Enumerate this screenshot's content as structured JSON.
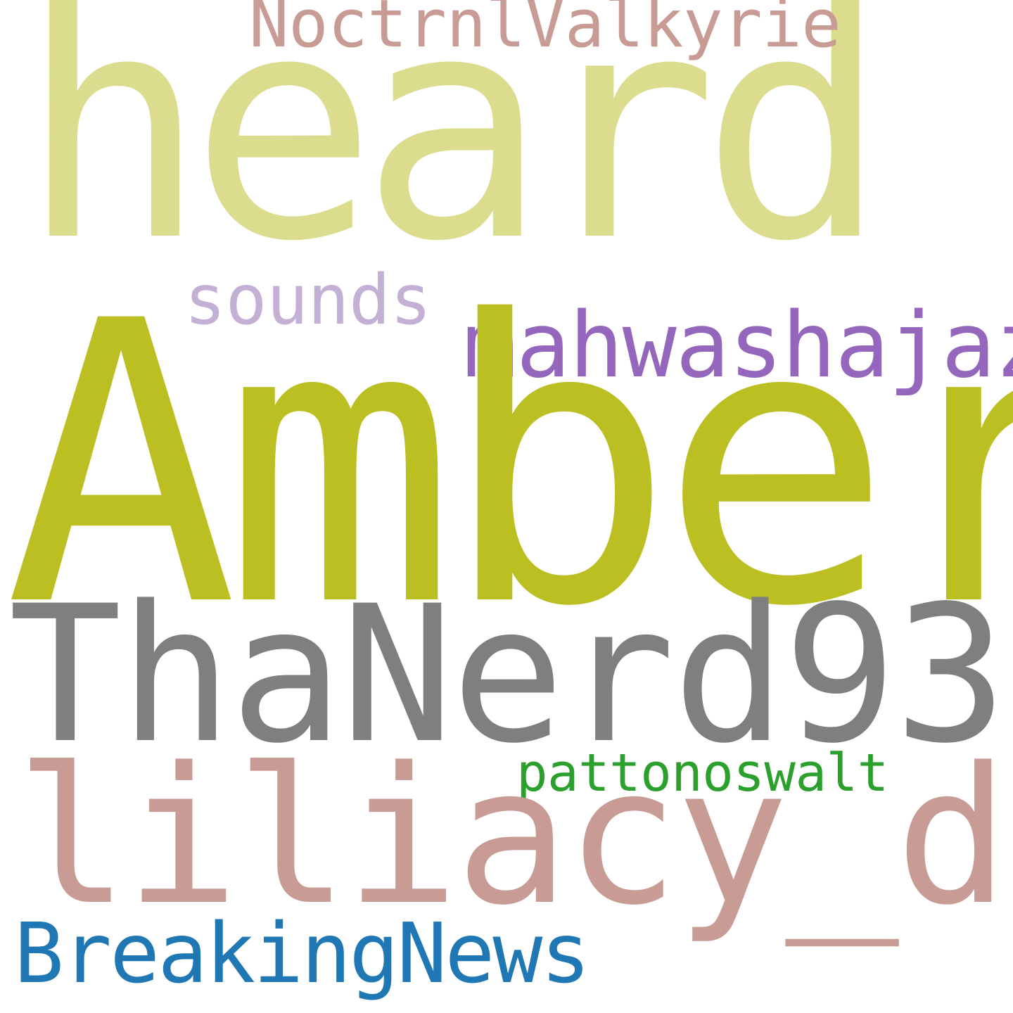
{
  "word_cloud": {
    "background": "#ffffff",
    "words": [
      {
        "text": "heard",
        "color": "#dbdc8e"
      },
      {
        "text": "Amber",
        "color": "#bcbf22"
      },
      {
        "text": "ThaNerd93",
        "color": "#7f7f7f"
      },
      {
        "text": "liliacy_d",
        "color": "#c89c95"
      },
      {
        "text": "NoctrnlValkyrie",
        "color": "#c89c95"
      },
      {
        "text": "mahwashajaz_",
        "color": "#9467bd"
      },
      {
        "text": "sounds",
        "color": "#c5b0d5"
      },
      {
        "text": "pattonoswalt",
        "color": "#2ca02c"
      },
      {
        "text": "BreakingNews",
        "color": "#1f77b4"
      }
    ]
  }
}
